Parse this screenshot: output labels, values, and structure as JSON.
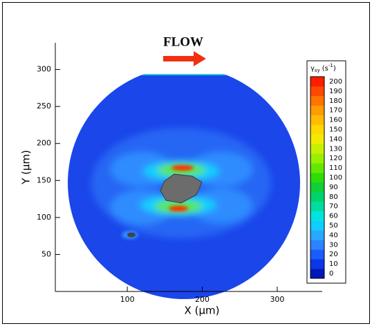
{
  "chart_data": {
    "type": "contour",
    "title": "FLOW",
    "xlabel": "X (μm)",
    "ylabel": "Y (μm)",
    "xlim": [
      4,
      360
    ],
    "ylim": [
      0,
      336
    ],
    "xticks": [
      100,
      200,
      300
    ],
    "yticks": [
      50,
      100,
      150,
      200,
      250,
      300
    ],
    "colorbar": {
      "label": "γ",
      "label_subscript": "sy",
      "unit": "(s",
      "unit_superscript": "-1",
      "unit_close": ")",
      "levels": [
        0,
        10,
        20,
        30,
        40,
        50,
        60,
        70,
        80,
        90,
        100,
        110,
        120,
        130,
        140,
        150,
        160,
        170,
        180,
        190,
        200
      ],
      "colors": [
        "#0018b8",
        "#0838e8",
        "#1c5cff",
        "#2a84ff",
        "#2aa8ff",
        "#10ccff",
        "#00e4e0",
        "#00dca0",
        "#00d468",
        "#10d038",
        "#30dc08",
        "#64e800",
        "#98f000",
        "#c8f000",
        "#f0ec00",
        "#ffd800",
        "#ffbc00",
        "#ff9c00",
        "#ff7400",
        "#ff4800",
        "#ff1c00"
      ]
    }
  }
}
